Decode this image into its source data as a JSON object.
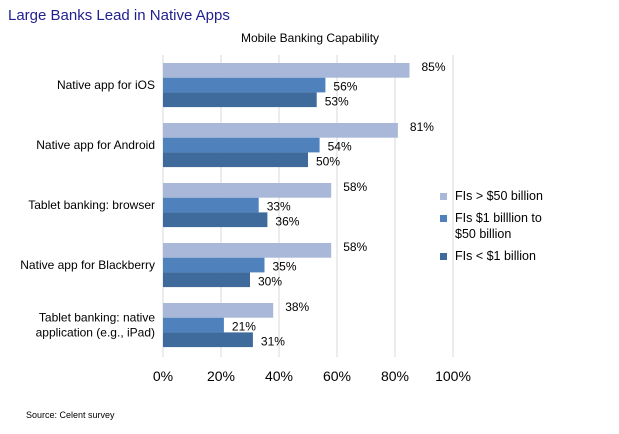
{
  "page": {
    "title": "Large Banks Lead in Native Apps",
    "source": "Source: Celent survey"
  },
  "colors": {
    "s0": "#A9B8D8",
    "s1": "#4F81BD",
    "s2": "#3E6A9C",
    "grid": "#D9D9D9"
  },
  "chart_data": {
    "type": "bar",
    "orientation": "horizontal",
    "title": "Mobile Banking Capability",
    "categories": [
      "Native app for iOS",
      "Native app for Android",
      "Tablet banking: browser",
      "Native app for Blackberry",
      "Tablet banking: native application (e.g., iPad)"
    ],
    "category_lines": [
      [
        "Native app for iOS"
      ],
      [
        "Native app for Android"
      ],
      [
        "Tablet banking: browser"
      ],
      [
        "Native app for Blackberry"
      ],
      [
        "Tablet banking: native",
        "application (e.g., iPad)"
      ]
    ],
    "series": [
      {
        "name": "FIs > $50 billion",
        "legend_lines": [
          "FIs > $50 billion"
        ],
        "values": [
          85,
          81,
          58,
          58,
          38
        ]
      },
      {
        "name": "FIs $1 billion to $50 billion",
        "legend_lines": [
          "FIs $1 billlion to",
          "$50 billion"
        ],
        "values": [
          56,
          54,
          33,
          35,
          21
        ]
      },
      {
        "name": "FIs < $1 billion",
        "legend_lines": [
          "FIs < $1 billion"
        ],
        "values": [
          53,
          50,
          36,
          30,
          31
        ]
      }
    ],
    "xlim": [
      0,
      100
    ],
    "xticks": [
      "0%",
      "20%",
      "40%",
      "60%",
      "80%",
      "100%"
    ],
    "grid": true,
    "legend": "right"
  }
}
